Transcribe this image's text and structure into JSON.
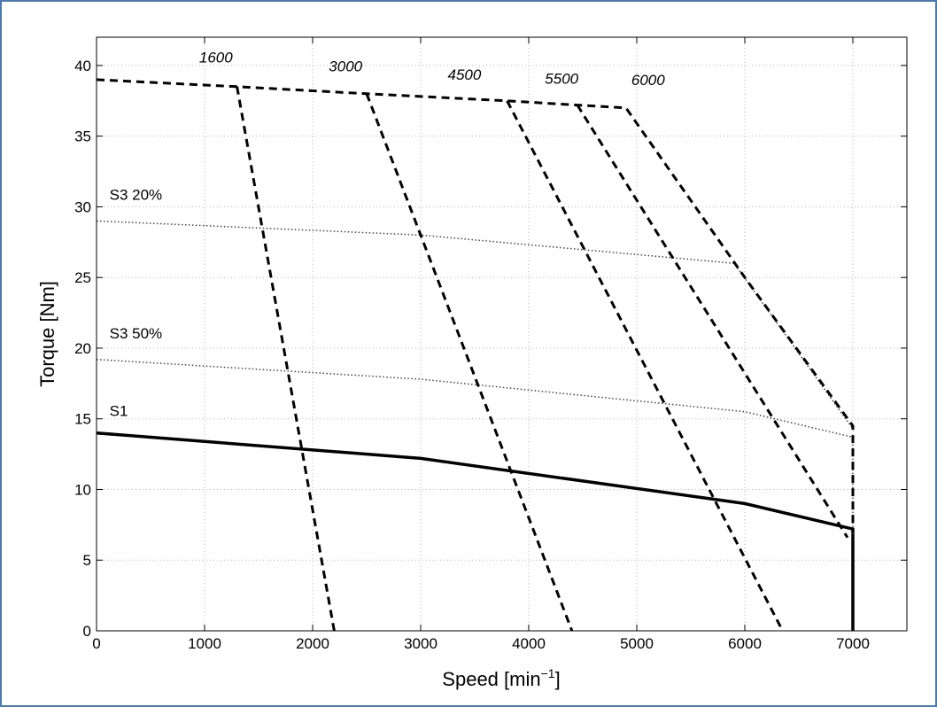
{
  "chart_data": {
    "type": "line",
    "title": "",
    "xlabel": "Speed [min",
    "xlabel_sup": "−1",
    "xlabel_end": "]",
    "ylabel": "Torque [Nm]",
    "xlim": [
      0,
      7500
    ],
    "ylim": [
      0,
      42
    ],
    "xticks": [
      0,
      1000,
      2000,
      3000,
      4000,
      5000,
      6000,
      7000
    ],
    "yticks": [
      0,
      5,
      10,
      15,
      20,
      25,
      30,
      35,
      40
    ],
    "grid": true,
    "legend": "none",
    "series": [
      {
        "name": "S1",
        "style": "solid",
        "color": "#000000",
        "points": [
          [
            0,
            14
          ],
          [
            3000,
            12.2
          ],
          [
            6000,
            9
          ],
          [
            7000,
            7.2
          ],
          [
            7000,
            0
          ]
        ]
      },
      {
        "name": "S3 50%",
        "style": "dotted",
        "color": "#444444",
        "points": [
          [
            0,
            19.2
          ],
          [
            3000,
            17.8
          ],
          [
            6000,
            15.5
          ],
          [
            7000,
            13.7
          ],
          [
            7000,
            6.8
          ]
        ]
      },
      {
        "name": "S3 20%",
        "style": "dotted",
        "color": "#444444",
        "points": [
          [
            0,
            29
          ],
          [
            3000,
            28
          ],
          [
            5900,
            26
          ],
          [
            7000,
            14.3
          ]
        ]
      },
      {
        "name": "",
        "style": "dashed",
        "color": "#000000",
        "points": [
          [
            0,
            39
          ],
          [
            1300,
            38.5
          ],
          [
            2500,
            38
          ],
          [
            3800,
            37.5
          ],
          [
            4450,
            37.2
          ],
          [
            4900,
            37
          ],
          [
            6000,
            25
          ],
          [
            7000,
            14.5
          ],
          [
            7000,
            7
          ]
        ]
      },
      {
        "name": "1600",
        "style": "dashed",
        "color": "#000000",
        "points": [
          [
            1300,
            38.5
          ],
          [
            2200,
            0
          ]
        ]
      },
      {
        "name": "3000",
        "style": "dashed",
        "color": "#000000",
        "points": [
          [
            2500,
            38
          ],
          [
            4400,
            0
          ]
        ]
      },
      {
        "name": "4500",
        "style": "dashed",
        "color": "#000000",
        "points": [
          [
            3800,
            37.5
          ],
          [
            6350,
            0
          ]
        ]
      },
      {
        "name": "5500",
        "style": "dashed",
        "color": "#000000",
        "points": [
          [
            4450,
            37.2
          ],
          [
            6950,
            6.6
          ]
        ]
      }
    ],
    "annotations": [
      {
        "text": "1600",
        "x": 950,
        "y": 40.2,
        "italic": true
      },
      {
        "text": "3000",
        "x": 2150,
        "y": 39.6,
        "italic": true
      },
      {
        "text": "4500",
        "x": 3250,
        "y": 39,
        "italic": true
      },
      {
        "text": "5500",
        "x": 4150,
        "y": 38.7,
        "italic": true
      },
      {
        "text": "6000",
        "x": 4950,
        "y": 38.6,
        "italic": true
      },
      {
        "text": "S3 20%",
        "x": 120,
        "y": 30.5,
        "italic": false
      },
      {
        "text": "S3 50%",
        "x": 120,
        "y": 20.7,
        "italic": false
      },
      {
        "text": "S1",
        "x": 120,
        "y": 15.2,
        "italic": false
      }
    ]
  }
}
